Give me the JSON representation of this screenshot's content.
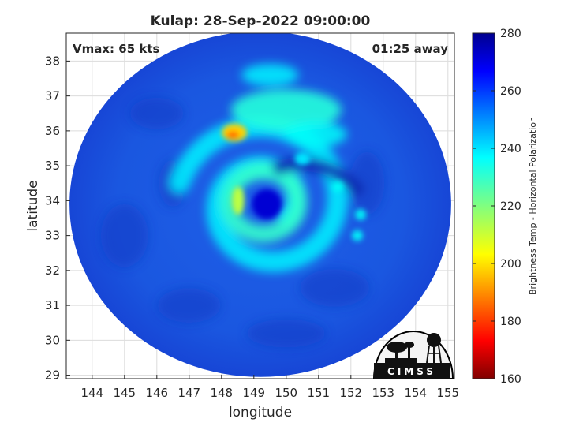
{
  "chart_data": {
    "type": "heatmap",
    "title": "Kulap: 28-Sep-2022 09:00:00",
    "xlabel": "longitude",
    "ylabel": "latitude",
    "xlim": [
      143.2,
      155.2
    ],
    "ylim": [
      28.9,
      38.8
    ],
    "xticks": [
      144,
      145,
      146,
      147,
      148,
      149,
      150,
      151,
      152,
      153,
      154,
      155
    ],
    "yticks": [
      29,
      30,
      31,
      32,
      33,
      34,
      35,
      36,
      37,
      38
    ],
    "grid": true,
    "annotations": {
      "left": "Vmax: 65 kts",
      "right": "01:25 away"
    },
    "colorbar": {
      "label": "Brightness Temp - Horizontal Polarization",
      "range": [
        160,
        280
      ],
      "ticks": [
        160,
        180,
        200,
        220,
        240,
        260,
        280
      ],
      "colormap": "jet"
    },
    "swath": {
      "center": [
        149.2,
        33.9
      ],
      "radius_lon": 5.9,
      "radius_lat": 4.95
    },
    "features": [
      {
        "name": "eye",
        "lon": 149.4,
        "lat": 33.9,
        "value": 272
      },
      {
        "name": "inner eyewall",
        "lon": 148.9,
        "lat": 34.0,
        "value": 232
      },
      {
        "name": "spiral rainband",
        "lon": 150.5,
        "lat": 35.2,
        "value": 240
      },
      {
        "name": "deep convection",
        "lon": 148.4,
        "lat": 35.95,
        "value": 198
      }
    ]
  },
  "logo": {
    "text": "CIMSS"
  }
}
